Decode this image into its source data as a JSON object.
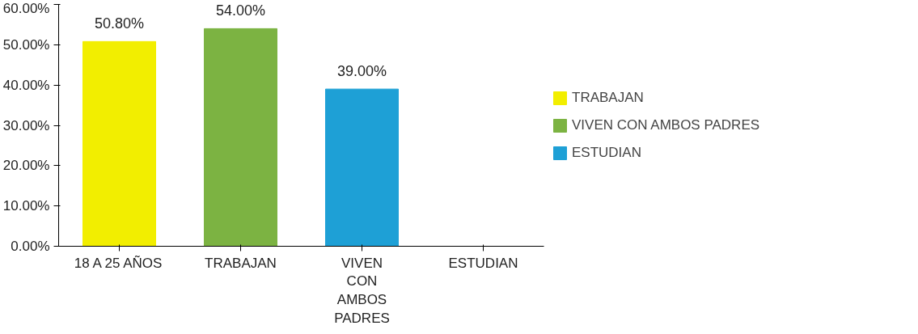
{
  "chart_data": {
    "type": "bar",
    "categories": [
      "18 A 25 AÑOS",
      "TRABAJAN",
      "VIVEN CON AMBOS PADRES",
      "ESTUDIAN"
    ],
    "series": [
      {
        "name": "TRABAJAN",
        "color": "#f2ee00",
        "values": [
          50.8,
          null,
          null,
          null
        ],
        "value_labels": [
          "50.80%",
          null,
          null,
          null
        ]
      },
      {
        "name": "VIVEN CON AMBOS PADRES",
        "color": "#7cb342",
        "values": [
          null,
          54.0,
          null,
          null
        ],
        "value_labels": [
          null,
          "54.00%",
          null,
          null
        ]
      },
      {
        "name": "ESTUDIAN",
        "color": "#1ea0d6",
        "values": [
          null,
          null,
          39.0,
          null
        ],
        "value_labels": [
          null,
          null,
          "39.00%",
          null
        ]
      }
    ],
    "ylim": [
      0,
      60
    ],
    "yticks": [
      {
        "value": 0,
        "label": "0.00%"
      },
      {
        "value": 10,
        "label": "10.00%"
      },
      {
        "value": 20,
        "label": "20.00%"
      },
      {
        "value": 30,
        "label": "30.00%"
      },
      {
        "value": 40,
        "label": "40.00%"
      },
      {
        "value": 50,
        "label": "50.00%"
      },
      {
        "value": 60,
        "label": "60.00%"
      }
    ],
    "grid": false,
    "legend": "right"
  }
}
